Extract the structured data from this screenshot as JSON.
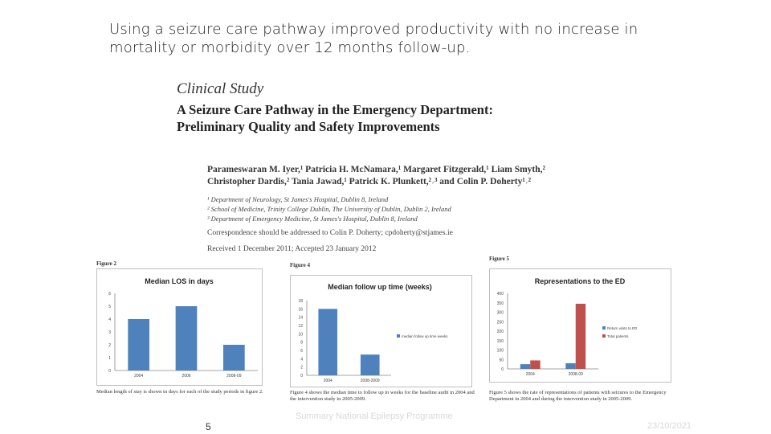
{
  "headline": "Using a seizure care pathway improved productivity with no increase in mortality or morbidity over 12 months follow-up.",
  "paper": {
    "kind": "Clinical Study",
    "title_line1": "A Seizure Care Pathway in the Emergency Department:",
    "title_line2": "Preliminary Quality and Safety Improvements",
    "authors_line1": "Parameswaran M. Iyer,¹ Patricia H. McNamara,¹ Margaret Fitzgerald,¹ Liam Smyth,²",
    "authors_line2": "Christopher Dardis,² Tania Jawad,¹ Patrick K. Plunkett,²˒³ and Colin P. Doherty¹˒²",
    "affil1": "¹ Department of Neurology, St James's Hospital, Dublin 8, Ireland",
    "affil2": "² School of Medicine, Trinity College Dublin, The University of Dublin, Dublin 2, Ireland",
    "affil3": "³ Department of Emergency Medicine, St James's Hospital, Dublin 8, Ireland",
    "correspondence": "Correspondence should be addressed to Colin P. Doherty; cpdoherty@stjames.ie",
    "received": "Received 1 December 2011; Accepted 23 January 2012"
  },
  "figures": {
    "fig2_label": "Figure 2",
    "fig4_label": "Figure 4",
    "fig5_label": "Figure 5",
    "fig2_caption": "Median length of stay is shown in days for each of the study periods in figure 2.",
    "fig4_caption": "Figure 4 shows the median time to follow up in weeks for the baseline audit in 2004 and the intervention study in 2005-2009.",
    "fig5_caption": "Figure 5 shows the rate of representations of patients with seizures to the Emergency Department in 2004 and during the intervention study in 2005-2009."
  },
  "chart_data": [
    {
      "type": "bar",
      "title": "Median LOS in days",
      "categories": [
        "2004",
        "2006",
        "2008-09"
      ],
      "values": [
        4,
        5,
        2
      ],
      "ylim": [
        0,
        6
      ],
      "yticks": [
        0,
        1,
        2,
        3,
        4,
        5,
        6
      ],
      "color": "#4f81bd",
      "grid": false
    },
    {
      "type": "bar",
      "title": "Median follow up time (weeks)",
      "categories": [
        "2004",
        "2008-2009"
      ],
      "values": [
        16,
        5
      ],
      "ylim": [
        0,
        18
      ],
      "yticks": [
        0,
        2,
        4,
        6,
        8,
        10,
        12,
        14,
        16,
        18
      ],
      "color": "#4f81bd",
      "legend": [
        "median follow up time weeks"
      ],
      "legend_position": "right",
      "grid": false
    },
    {
      "type": "bar",
      "title": "Representations to the ED",
      "categories": [
        "2004",
        "2008-09"
      ],
      "series": [
        {
          "name": "Return visits to ED",
          "values": [
            25,
            30
          ],
          "color": "#4f81bd"
        },
        {
          "name": "Total patients",
          "values": [
            45,
            345
          ],
          "color": "#c0504d"
        }
      ],
      "ylim": [
        0,
        400
      ],
      "yticks": [
        0,
        50,
        100,
        150,
        200,
        250,
        300,
        350,
        400
      ],
      "legend_position": "right",
      "grid": false
    }
  ],
  "footer": {
    "page_number": "5",
    "center_text": "Summary National Epilepsy Programme",
    "date": "23/10/2021"
  }
}
